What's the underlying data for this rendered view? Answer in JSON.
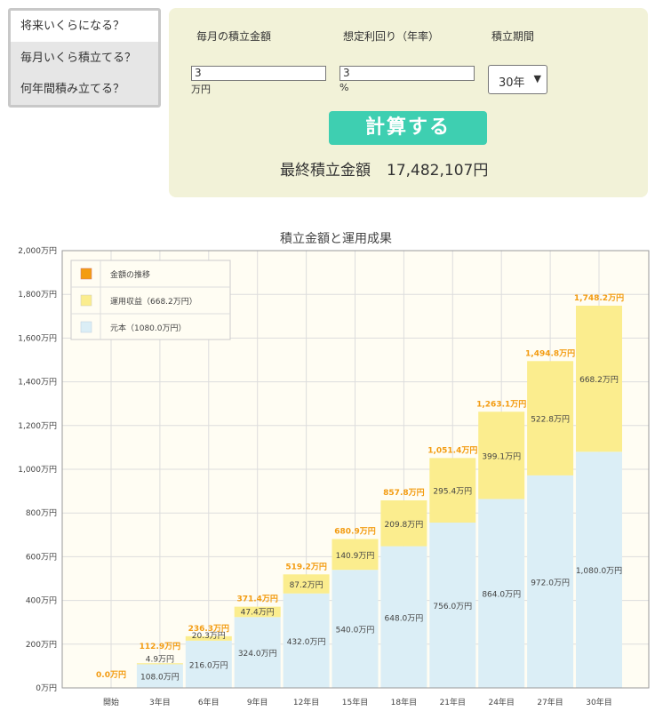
{
  "menu": {
    "items": [
      {
        "label": "将来いくらになる？",
        "active": true
      },
      {
        "label": "毎月いくら積立てる？",
        "active": false
      },
      {
        "label": "何年間積み立てる？",
        "active": false
      }
    ]
  },
  "form": {
    "monthly_label": "毎月の積立金額",
    "monthly_value": "3",
    "monthly_unit": "万円",
    "rate_label": "想定利回り（年率）",
    "rate_value": "3",
    "rate_unit": "%",
    "period_label": "積立期間",
    "period_value": "30年",
    "calc_button": "計算する",
    "result_label": "最終積立金額",
    "result_value": "17,482,107円"
  },
  "colors": {
    "principal": "#dbeef6",
    "gain": "#fbed8e",
    "trend": "#f39c12",
    "accent_button": "#3ecfb1",
    "panel_bg": "#f2f2d8"
  },
  "chart_data": {
    "type": "bar",
    "title": "積立金額と運用成果",
    "categories": [
      "開始",
      "3年目",
      "6年目",
      "9年目",
      "12年目",
      "15年目",
      "18年目",
      "21年目",
      "24年目",
      "27年目",
      "30年目"
    ],
    "series": [
      {
        "name": "元本（1080.0万円）",
        "values": [
          0,
          108.0,
          216.0,
          324.0,
          432.0,
          540.0,
          648.0,
          756.0,
          864.0,
          972.0,
          1080.0
        ],
        "labels": [
          "",
          "108.0万円",
          "216.0万円",
          "324.0万円",
          "432.0万円",
          "540.0万円",
          "648.0万円",
          "756.0万円",
          "864.0万円",
          "972.0万円",
          "1,080.0万円"
        ]
      },
      {
        "name": "運用収益（668.2万円）",
        "values": [
          0,
          4.9,
          20.3,
          47.4,
          87.2,
          140.9,
          209.8,
          295.4,
          399.1,
          522.8,
          668.2
        ],
        "labels": [
          "",
          "4.9万円",
          "20.3万円",
          "47.4万円",
          "87.2万円",
          "140.9万円",
          "209.8万円",
          "295.4万円",
          "399.1万円",
          "522.8万円",
          "668.2万円"
        ]
      }
    ],
    "totals": [
      0,
      112.9,
      236.3,
      371.4,
      519.2,
      680.9,
      857.8,
      1051.4,
      1263.1,
      1494.8,
      1748.2
    ],
    "total_labels": [
      "0.0万円",
      "112.9万円",
      "236.3万円",
      "371.4万円",
      "519.2万円",
      "680.9万円",
      "857.8万円",
      "1,051.4万円",
      "1,263.1万円",
      "1,494.8万円",
      "1,748.2万円"
    ],
    "legend": [
      "金額の推移",
      "運用収益（668.2万円）",
      "元本（1080.0万円）"
    ],
    "legend_position": "top-left",
    "ylim": [
      0,
      2000
    ],
    "yticks": [
      0,
      200,
      400,
      600,
      800,
      1000,
      1200,
      1400,
      1600,
      1800,
      2000
    ],
    "ytick_labels": [
      "0万円",
      "200万円",
      "400万円",
      "600万円",
      "800万円",
      "1,000万円",
      "1,200万円",
      "1,400万円",
      "1,600万円",
      "1,800万円",
      "2,000万円"
    ],
    "grid": true
  }
}
